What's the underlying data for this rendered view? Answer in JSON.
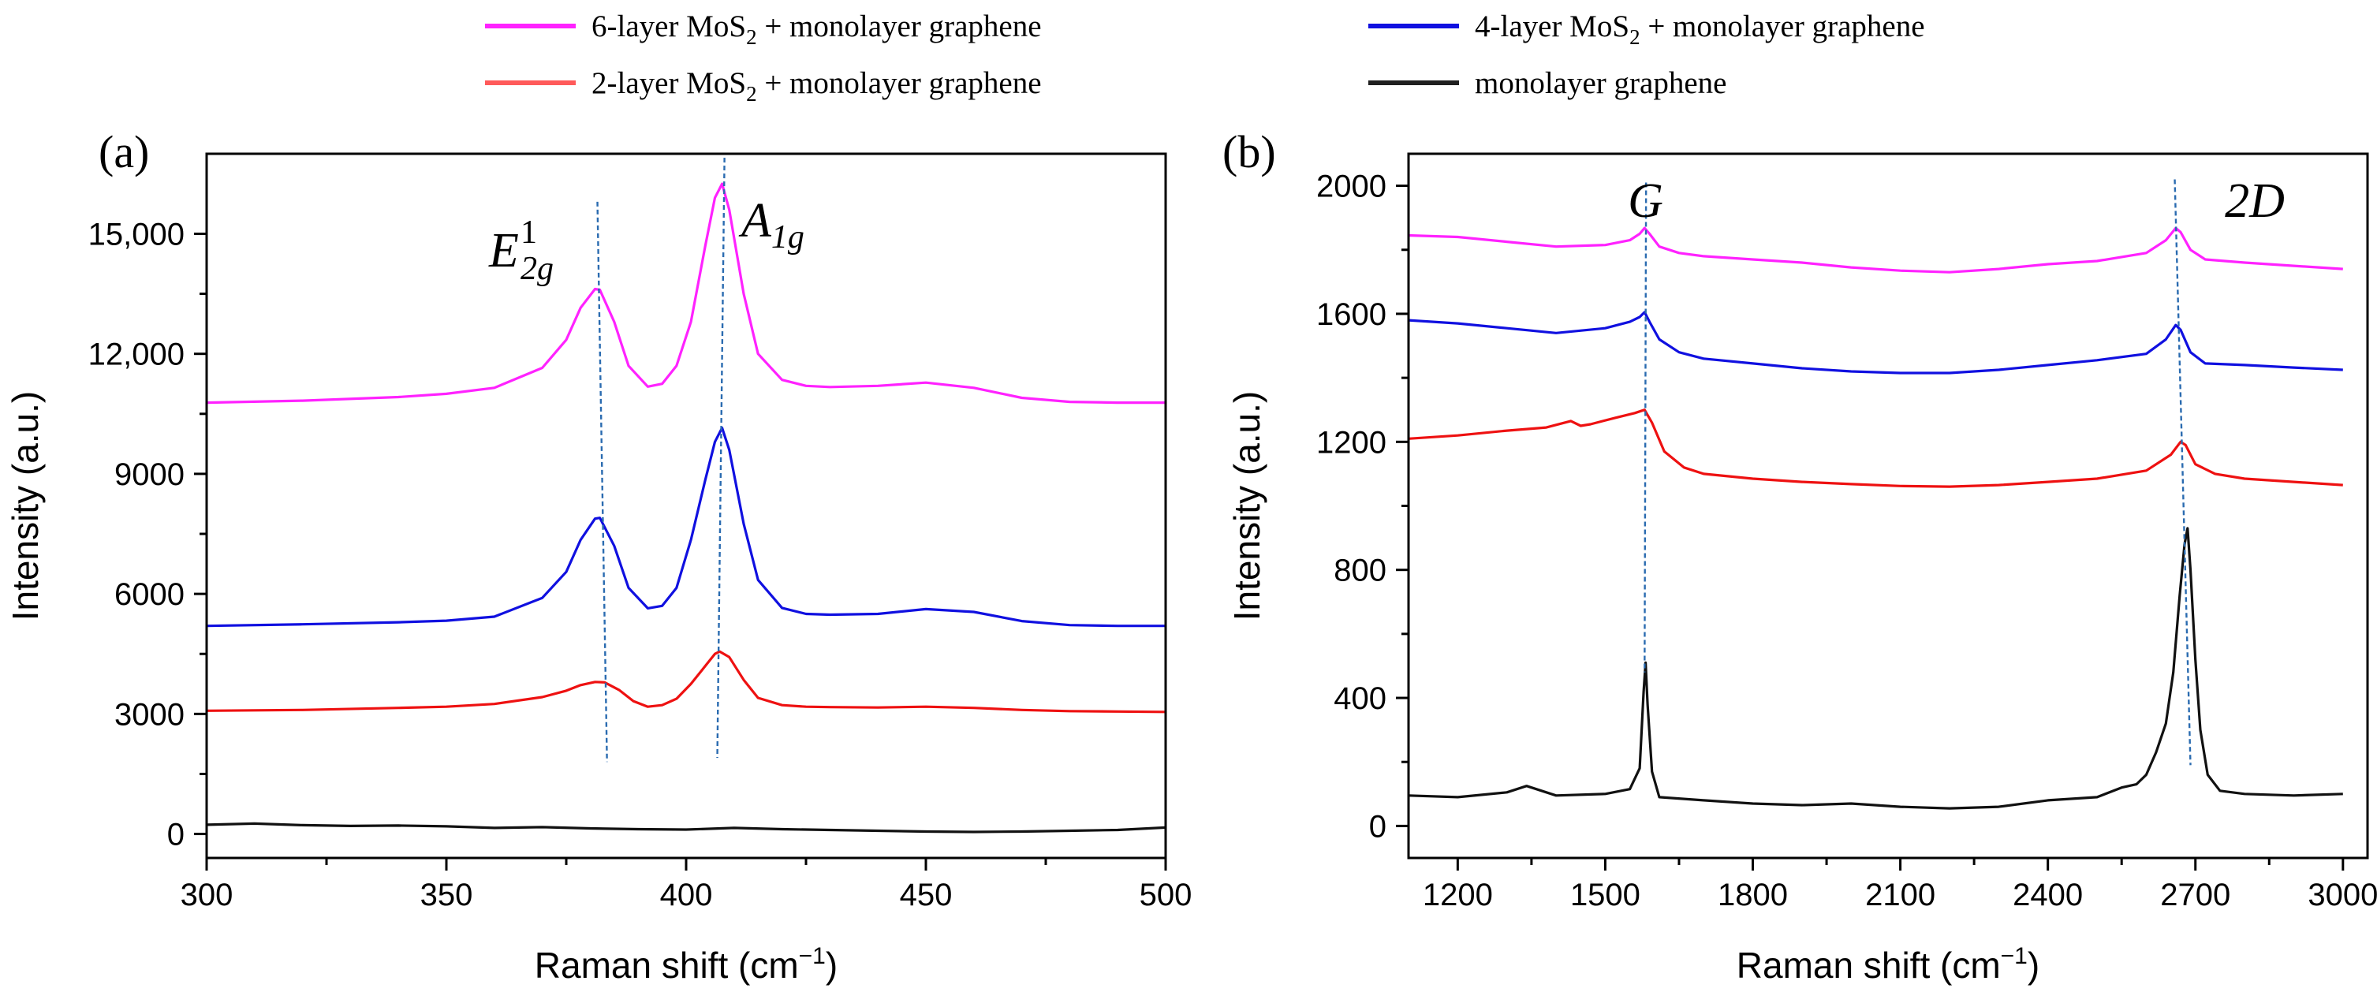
{
  "legend": [
    {
      "label_pre": "6-layer MoS",
      "label_sub": "2",
      "label_post": " + monolayer graphene",
      "color": "#ff22ff"
    },
    {
      "label_pre": "4-layer MoS",
      "label_sub": "2",
      "label_post": " + monolayer graphene",
      "color": "#1010e0"
    },
    {
      "label_pre": "2-layer MoS",
      "label_sub": "2",
      "label_post": " + monolayer graphene",
      "color": "#ff5a5a"
    },
    {
      "label_pre": "monolayer graphene",
      "label_sub": "",
      "label_post": "",
      "color": "#202020"
    }
  ],
  "colors": {
    "six_layer": "#ff22ff",
    "four_layer": "#1010e0",
    "two_layer": "#ee1111",
    "graphene": "#111111",
    "guide": "#2a6bb0",
    "axis": "#000000"
  },
  "chart_data": [
    {
      "panel_label": "(a)",
      "type": "line",
      "xlabel_pre": "Raman shift (cm",
      "xlabel_sup": "−1",
      "xlabel_post": ")",
      "ylabel": "Intensity (a.u.)",
      "xlim": [
        300,
        500
      ],
      "ylim": [
        -600,
        17000
      ],
      "xticks": [
        300,
        350,
        400,
        450,
        500
      ],
      "xtick_labels": [
        "300",
        "350",
        "400",
        "450",
        "500"
      ],
      "yticks": [
        0,
        3000,
        6000,
        9000,
        12000,
        15000
      ],
      "ytick_labels": [
        "0",
        "3000",
        "6000",
        "9000",
        "12,000",
        "15,000"
      ],
      "peak_labels": [
        {
          "base": "E",
          "sup": "1",
          "sub": "2g",
          "x": 382
        },
        {
          "base": "A",
          "sup": "",
          "sub": "1g",
          "x": 407.5
        }
      ],
      "guides": [
        {
          "x_top": 381.5,
          "y_top": 15800,
          "x_bottom": 383.5,
          "y_bottom": 1800
        },
        {
          "x_top": 408,
          "y_top": 16900,
          "x_bottom": 406.5,
          "y_bottom": 1900
        }
      ],
      "series": [
        {
          "name": "6-layer MoS2 + monolayer graphene",
          "color": "#ff22ff",
          "x": [
            300,
            320,
            340,
            350,
            360,
            370,
            375,
            378,
            381,
            382,
            385,
            388,
            392,
            395,
            398,
            401,
            404,
            406,
            407.5,
            409,
            412,
            415,
            420,
            425,
            430,
            440,
            450,
            460,
            470,
            480,
            490,
            500
          ],
          "values": [
            10780,
            10830,
            10920,
            11000,
            11150,
            11650,
            12350,
            13150,
            13620,
            13600,
            12800,
            11700,
            11180,
            11250,
            11700,
            12800,
            14700,
            15900,
            16250,
            15600,
            13500,
            12000,
            11350,
            11200,
            11170,
            11200,
            11280,
            11150,
            10900,
            10800,
            10780,
            10780
          ]
        },
        {
          "name": "4-layer MoS2 + monolayer graphene",
          "color": "#1010e0",
          "x": [
            300,
            320,
            340,
            350,
            360,
            370,
            375,
            378,
            381,
            382,
            385,
            388,
            392,
            395,
            398,
            401,
            404,
            406,
            407.5,
            409,
            412,
            415,
            420,
            425,
            430,
            440,
            450,
            460,
            470,
            480,
            490,
            500
          ],
          "values": [
            5200,
            5240,
            5290,
            5330,
            5430,
            5900,
            6550,
            7350,
            7880,
            7900,
            7200,
            6150,
            5640,
            5700,
            6150,
            7350,
            8850,
            9800,
            10150,
            9600,
            7750,
            6350,
            5650,
            5500,
            5480,
            5500,
            5620,
            5550,
            5320,
            5220,
            5200,
            5200
          ]
        },
        {
          "name": "2-layer MoS2 + monolayer graphene",
          "color": "#ee1111",
          "x": [
            300,
            320,
            340,
            350,
            360,
            370,
            375,
            378,
            381,
            383,
            386,
            389,
            392,
            395,
            398,
            401,
            404,
            406,
            407,
            409,
            412,
            415,
            420,
            425,
            430,
            440,
            450,
            460,
            470,
            480,
            490,
            500
          ],
          "values": [
            3080,
            3100,
            3150,
            3180,
            3250,
            3420,
            3580,
            3720,
            3800,
            3790,
            3600,
            3320,
            3180,
            3220,
            3380,
            3750,
            4200,
            4500,
            4560,
            4420,
            3850,
            3400,
            3220,
            3180,
            3170,
            3160,
            3180,
            3150,
            3100,
            3070,
            3060,
            3050
          ]
        },
        {
          "name": "monolayer graphene",
          "color": "#111111",
          "x": [
            300,
            310,
            320,
            330,
            340,
            350,
            360,
            370,
            380,
            390,
            400,
            410,
            420,
            430,
            440,
            450,
            460,
            470,
            480,
            490,
            500
          ],
          "values": [
            230,
            260,
            220,
            200,
            210,
            190,
            150,
            170,
            140,
            120,
            110,
            150,
            120,
            100,
            80,
            60,
            50,
            60,
            80,
            100,
            160
          ]
        }
      ]
    },
    {
      "panel_label": "(b)",
      "type": "line",
      "xlabel_pre": "Raman shift (cm",
      "xlabel_sup": "−1",
      "xlabel_post": ")",
      "ylabel": "Intensity (a.u.)",
      "xlim": [
        1100,
        3050
      ],
      "ylim": [
        -100,
        2100
      ],
      "xticks": [
        1200,
        1500,
        1800,
        2100,
        2400,
        2700,
        3000
      ],
      "xtick_labels": [
        "1200",
        "1500",
        "1800",
        "2100",
        "2400",
        "2700",
        "3000"
      ],
      "yticks": [
        0,
        400,
        800,
        1200,
        1600,
        2000
      ],
      "ytick_labels": [
        "0",
        "400",
        "800",
        "1200",
        "1600",
        "2000"
      ],
      "peak_labels": [
        {
          "base": "G",
          "sup": "",
          "sub": "",
          "x": 1530
        },
        {
          "base": "2D",
          "sup": "",
          "sub": "",
          "x": 2760
        }
      ],
      "guides": [
        {
          "x_top": 1583,
          "y_top": 2010,
          "x_bottom": 1580,
          "y_bottom": 480
        },
        {
          "x_top": 2658,
          "y_top": 2020,
          "x_bottom": 2690,
          "y_bottom": 190
        }
      ],
      "series": [
        {
          "name": "6-layer MoS2 + monolayer graphene",
          "color": "#ff22ff",
          "x": [
            1100,
            1200,
            1300,
            1400,
            1500,
            1550,
            1570,
            1580,
            1590,
            1610,
            1650,
            1700,
            1800,
            1900,
            2000,
            2100,
            2200,
            2300,
            2400,
            2500,
            2600,
            2640,
            2660,
            2670,
            2690,
            2720,
            2800,
            2900,
            3000
          ],
          "values": [
            1845,
            1840,
            1825,
            1810,
            1815,
            1830,
            1850,
            1868,
            1850,
            1810,
            1790,
            1780,
            1770,
            1760,
            1745,
            1735,
            1730,
            1740,
            1755,
            1765,
            1790,
            1830,
            1868,
            1855,
            1800,
            1770,
            1760,
            1750,
            1740
          ]
        },
        {
          "name": "4-layer MoS2 + monolayer graphene",
          "color": "#1010e0",
          "x": [
            1100,
            1200,
            1300,
            1400,
            1500,
            1550,
            1570,
            1580,
            1590,
            1610,
            1650,
            1700,
            1800,
            1900,
            2000,
            2100,
            2200,
            2300,
            2400,
            2500,
            2600,
            2640,
            2660,
            2670,
            2690,
            2720,
            2800,
            2900,
            3000
          ],
          "values": [
            1580,
            1570,
            1555,
            1540,
            1555,
            1575,
            1590,
            1605,
            1575,
            1520,
            1480,
            1460,
            1445,
            1430,
            1420,
            1415,
            1415,
            1425,
            1440,
            1455,
            1475,
            1520,
            1565,
            1550,
            1480,
            1445,
            1440,
            1432,
            1425
          ]
        },
        {
          "name": "2-layer MoS2 + monolayer graphene",
          "color": "#ee1111",
          "x": [
            1100,
            1200,
            1300,
            1380,
            1430,
            1450,
            1470,
            1520,
            1560,
            1580,
            1595,
            1620,
            1660,
            1700,
            1800,
            1900,
            2000,
            2100,
            2200,
            2300,
            2400,
            2500,
            2600,
            2650,
            2670,
            2680,
            2700,
            2740,
            2800,
            2900,
            3000
          ],
          "values": [
            1210,
            1220,
            1235,
            1245,
            1265,
            1250,
            1255,
            1275,
            1290,
            1300,
            1260,
            1170,
            1120,
            1100,
            1085,
            1075,
            1068,
            1062,
            1060,
            1065,
            1075,
            1085,
            1110,
            1160,
            1200,
            1190,
            1130,
            1100,
            1085,
            1075,
            1065
          ]
        },
        {
          "name": "monolayer graphene",
          "color": "#111111",
          "x": [
            1100,
            1200,
            1300,
            1340,
            1400,
            1500,
            1550,
            1570,
            1578,
            1582,
            1586,
            1595,
            1610,
            1700,
            1800,
            1900,
            2000,
            2100,
            2200,
            2300,
            2400,
            2500,
            2550,
            2580,
            2600,
            2620,
            2640,
            2655,
            2668,
            2678,
            2684,
            2690,
            2700,
            2710,
            2725,
            2750,
            2800,
            2900,
            3000
          ],
          "values": [
            95,
            90,
            105,
            125,
            95,
            100,
            115,
            180,
            420,
            510,
            380,
            170,
            90,
            80,
            70,
            65,
            70,
            60,
            55,
            60,
            80,
            90,
            120,
            130,
            160,
            230,
            320,
            480,
            720,
            880,
            930,
            800,
            520,
            300,
            160,
            110,
            100,
            95,
            100
          ]
        }
      ]
    }
  ]
}
